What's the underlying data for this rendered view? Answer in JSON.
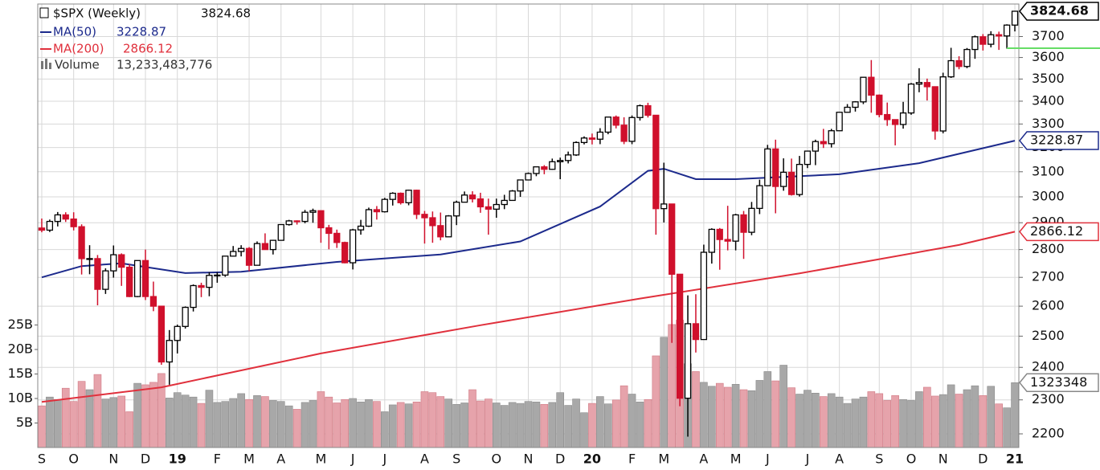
{
  "chart_data": {
    "type": "candlestick",
    "symbol": "$SPX (Weekly)",
    "up_color": "#000000",
    "down_color": "#d0102c",
    "open": [
      2880,
      2872,
      2905,
      2930,
      2914,
      2885,
      2767,
      2767,
      2658,
      2723,
      2781,
      2736,
      2633,
      2760,
      2633,
      2600,
      2417,
      2486,
      2532,
      2596,
      2671,
      2665,
      2707,
      2708,
      2776,
      2793,
      2804,
      2743,
      2822,
      2800,
      2834,
      2893,
      2907,
      2905,
      2940,
      2946,
      2881,
      2860,
      2826,
      2752,
      2873,
      2887,
      2950,
      2942,
      2990,
      3014,
      2977,
      3026,
      2932,
      2919,
      2889,
      2847,
      2926,
      2979,
      3007,
      2992,
      2961,
      2952,
      2970,
      2986,
      3023,
      3067,
      3093,
      3120,
      3110,
      3141,
      3146,
      3169,
      3221,
      3240,
      3235,
      3265,
      3330,
      3295,
      3226,
      3328,
      3380,
      3338,
      2954,
      2972,
      2711,
      2305,
      2541,
      2489,
      2790,
      2875,
      2837,
      2831,
      2930,
      2864,
      2955,
      3044,
      3194,
      3041,
      3098,
      3009,
      3130,
      3185,
      3225,
      3216,
      3271,
      3351,
      3373,
      3397,
      3508,
      3427,
      3341,
      3319,
      3298,
      3348,
      3477,
      3484,
      3465,
      3270,
      3510,
      3585,
      3558,
      3638,
      3699,
      3663,
      3709,
      3703,
      3756
    ],
    "high": [
      2916,
      2912,
      2941,
      2940,
      2940,
      2894,
      2816,
      2780,
      2732,
      2815,
      2786,
      2747,
      2760,
      2800,
      2685,
      2601,
      2520,
      2538,
      2599,
      2675,
      2681,
      2718,
      2718,
      2776,
      2813,
      2816,
      2809,
      2830,
      2860,
      2836,
      2893,
      2911,
      2909,
      2949,
      2954,
      2931,
      2892,
      2874,
      2829,
      2877,
      2911,
      2958,
      2964,
      2996,
      3018,
      3017,
      3028,
      3028,
      2945,
      2943,
      2939,
      2929,
      2985,
      3021,
      3022,
      3016,
      2993,
      2993,
      3008,
      3027,
      3067,
      3097,
      3120,
      3127,
      3154,
      3158,
      3183,
      3226,
      3247,
      3259,
      3282,
      3330,
      3337,
      3329,
      3337,
      3385,
      3393,
      3339,
      3137,
      2973,
      2711,
      2637,
      2641,
      2818,
      2879,
      2880,
      2965,
      2934,
      2945,
      2980,
      3068,
      3211,
      3233,
      3155,
      3154,
      3165,
      3187,
      3233,
      3279,
      3279,
      3352,
      3387,
      3400,
      3509,
      3588,
      3430,
      3394,
      3320,
      3397,
      3482,
      3550,
      3502,
      3466,
      3529,
      3646,
      3606,
      3645,
      3705,
      3712,
      3726,
      3724,
      3760,
      3826
    ],
    "low": [
      2864,
      2865,
      2886,
      2903,
      2871,
      2710,
      2711,
      2603,
      2642,
      2699,
      2670,
      2631,
      2631,
      2621,
      2583,
      2408,
      2346,
      2444,
      2525,
      2582,
      2631,
      2634,
      2681,
      2702,
      2775,
      2775,
      2722,
      2743,
      2800,
      2782,
      2834,
      2889,
      2893,
      2898,
      2900,
      2825,
      2801,
      2806,
      2750,
      2728,
      2855,
      2884,
      2912,
      2939,
      2966,
      2970,
      2967,
      2914,
      2822,
      2825,
      2834,
      2853,
      2891,
      2979,
      2978,
      2938,
      2855,
      2919,
      2952,
      2986,
      3000,
      3066,
      3082,
      3090,
      3108,
      3070,
      3134,
      3165,
      3213,
      3213,
      3214,
      3256,
      3281,
      3214,
      3214,
      3315,
      3328,
      2855,
      2901,
      2478,
      2281,
      2192,
      2447,
      2489,
      2749,
      2727,
      2797,
      2797,
      2766,
      2853,
      2933,
      3044,
      2936,
      3024,
      3005,
      3001,
      3115,
      3127,
      3198,
      3200,
      3270,
      3350,
      3354,
      3387,
      3349,
      3329,
      3292,
      3209,
      3280,
      3340,
      3440,
      3403,
      3233,
      3260,
      3505,
      3545,
      3550,
      3594,
      3633,
      3648,
      3636,
      3642,
      3725
    ],
    "close": [
      2872,
      2905,
      2930,
      2914,
      2885,
      2767,
      2767,
      2658,
      2723,
      2781,
      2736,
      2633,
      2760,
      2633,
      2600,
      2417,
      2486,
      2532,
      2596,
      2671,
      2665,
      2707,
      2708,
      2776,
      2793,
      2804,
      2743,
      2822,
      2800,
      2834,
      2893,
      2907,
      2905,
      2940,
      2946,
      2881,
      2860,
      2826,
      2752,
      2873,
      2887,
      2950,
      2942,
      2990,
      3014,
      2977,
      3026,
      2932,
      2919,
      2889,
      2847,
      2926,
      2979,
      3007,
      2992,
      2961,
      2952,
      2970,
      2986,
      3023,
      3067,
      3093,
      3120,
      3110,
      3141,
      3146,
      3169,
      3221,
      3240,
      3235,
      3265,
      3330,
      3295,
      3226,
      3328,
      3380,
      3338,
      2954,
      2972,
      2711,
      2305,
      2541,
      2489,
      2790,
      2875,
      2837,
      2831,
      2930,
      2864,
      2955,
      3044,
      3194,
      3041,
      3098,
      3009,
      3130,
      3185,
      3225,
      3216,
      3271,
      3351,
      3373,
      3397,
      3508,
      3427,
      3341,
      3319,
      3298,
      3348,
      3477,
      3484,
      3465,
      3270,
      3510,
      3585,
      3558,
      3638,
      3699,
      3663,
      3709,
      3703,
      3756,
      3824.68
    ],
    "ylim": [
      2161,
      3861
    ],
    "log_scale": true,
    "grid": true,
    "yticks": [
      2200,
      2300,
      2400,
      2500,
      2600,
      2700,
      2800,
      2900,
      3000,
      3100,
      3200,
      3300,
      3400,
      3500,
      3600,
      3700
    ],
    "xticks": [
      {
        "value": 0,
        "label": "S"
      },
      {
        "value": 4,
        "label": "O"
      },
      {
        "value": 9,
        "label": "N"
      },
      {
        "value": 13,
        "label": "D"
      },
      {
        "value": 17,
        "label": "19"
      },
      {
        "value": 22,
        "label": "F"
      },
      {
        "value": 26,
        "label": "M"
      },
      {
        "value": 30,
        "label": "A"
      },
      {
        "value": 35,
        "label": "M"
      },
      {
        "value": 39,
        "label": "J"
      },
      {
        "value": 43,
        "label": "J"
      },
      {
        "value": 48,
        "label": "A"
      },
      {
        "value": 52,
        "label": "S"
      },
      {
        "value": 57,
        "label": "O"
      },
      {
        "value": 61,
        "label": "N"
      },
      {
        "value": 65,
        "label": "D"
      },
      {
        "value": 69,
        "label": "20"
      },
      {
        "value": 74,
        "label": "F"
      },
      {
        "value": 78,
        "label": "M"
      },
      {
        "value": 83,
        "label": "A"
      },
      {
        "value": 87,
        "label": "M"
      },
      {
        "value": 91,
        "label": "J"
      },
      {
        "value": 96,
        "label": "J"
      },
      {
        "value": 100,
        "label": "A"
      },
      {
        "value": 105,
        "label": "S"
      },
      {
        "value": 109,
        "label": "O"
      },
      {
        "value": 113,
        "label": "N"
      },
      {
        "value": 118,
        "label": "D"
      },
      {
        "value": 122,
        "label": "21"
      }
    ],
    "xlim": [
      -0.5,
      122.5
    ],
    "ma": [
      {
        "name": "MA(50)",
        "color": "#1c2a8c",
        "x": [
          0,
          5,
          10,
          18,
          25,
          37,
          50,
          60,
          70,
          76,
          78,
          82,
          87,
          100,
          110,
          122
        ],
        "values": [
          2700,
          2740,
          2750,
          2715,
          2720,
          2755,
          2782,
          2830,
          2962,
          3104,
          3112,
          3070,
          3070,
          3090,
          3135,
          3228.87
        ]
      },
      {
        "name": "MA(200)",
        "color": "#e0303c",
        "x": [
          0,
          15,
          35,
          55,
          75,
          95,
          115,
          122
        ],
        "values": [
          2294,
          2338,
          2444,
          2536,
          2626,
          2714,
          2817,
          2866.12
        ]
      }
    ],
    "volume": {
      "name": "Volume",
      "up_color": "#a8a8a8",
      "down_color": "#e6a3ab",
      "last_label": "13,233,483,776",
      "badge_label": "1323348",
      "ylim": [
        0,
        90500000000.0
      ],
      "yticks": [
        {
          "value": 5000000000.0,
          "label": "5B"
        },
        {
          "value": 10000000000.0,
          "label": "10B"
        },
        {
          "value": 15000000000.0,
          "label": "15B"
        },
        {
          "value": 20000000000.0,
          "label": "20B"
        },
        {
          "value": 25000000000.0,
          "label": "25B"
        }
      ],
      "values": [
        8500000000.0,
        10300000000.0,
        9800000000.0,
        12100000000.0,
        9400000000.0,
        13500000000.0,
        11800000000.0,
        14900000000.0,
        9900000000.0,
        10200000000.0,
        10500000000.0,
        7300000000.0,
        13100000000.0,
        12800000000.0,
        13300000000.0,
        15100000000.0,
        10100000000.0,
        11200000000.0,
        10700000000.0,
        10300000000.0,
        9000000000.0,
        11700000000.0,
        9200000000.0,
        9400000000.0,
        10000000000.0,
        11000000000.0,
        9800000000.0,
        10600000000.0,
        10400000000.0,
        9600000000.0,
        9400000000.0,
        8500000000.0,
        7800000000.0,
        9200000000.0,
        9600000000.0,
        11400000000.0,
        10300000000.0,
        9100000000.0,
        9800000000.0,
        10000000000.0,
        9300000000.0,
        9800000000.0,
        9400000000.0,
        7300000000.0,
        8700000000.0,
        9200000000.0,
        8900000000.0,
        9300000000.0,
        11400000000.0,
        11200000000.0,
        10400000000.0,
        9900000000.0,
        8800000000.0,
        9100000000.0,
        11800000000.0,
        9500000000.0,
        9900000000.0,
        9100000000.0,
        8600000000.0,
        9200000000.0,
        9000000000.0,
        9400000000.0,
        9300000000.0,
        8800000000.0,
        9200000000.0,
        11200000000.0,
        8600000000.0,
        9900000000.0,
        7100000000.0,
        9000000000.0,
        10400000000.0,
        8900000000.0,
        9700000000.0,
        12600000000.0,
        10900000000.0,
        9300000000.0,
        9800000000.0,
        18700000000.0,
        22500000000.0,
        25100000000.0,
        26000000000.0,
        17100000000.0,
        15500000000.0,
        13300000000.0,
        12500000000.0,
        13100000000.0,
        12300000000.0,
        12900000000.0,
        11800000000.0,
        11600000000.0,
        13700000000.0,
        15500000000.0,
        13600000000.0,
        16800000000.0,
        12200000000.0,
        10900000000.0,
        11700000000.0,
        11100000000.0,
        10400000000.0,
        11000000000.0,
        10300000000.0,
        9000000000.0,
        9900000000.0,
        10300000000.0,
        11400000000.0,
        11000000000.0,
        9600000000.0,
        10600000000.0,
        9800000000.0,
        9600000000.0,
        11400000000.0,
        12300000000.0,
        10500000000.0,
        10800000000.0,
        12800000000.0,
        10900000000.0,
        11800000000.0,
        12600000000.0,
        10600000000.0,
        12500000000.0,
        8900000000.0,
        8100000000.0,
        13233483776
      ]
    },
    "level": {
      "value": 3644,
      "color": "#66dd66"
    }
  }
}
